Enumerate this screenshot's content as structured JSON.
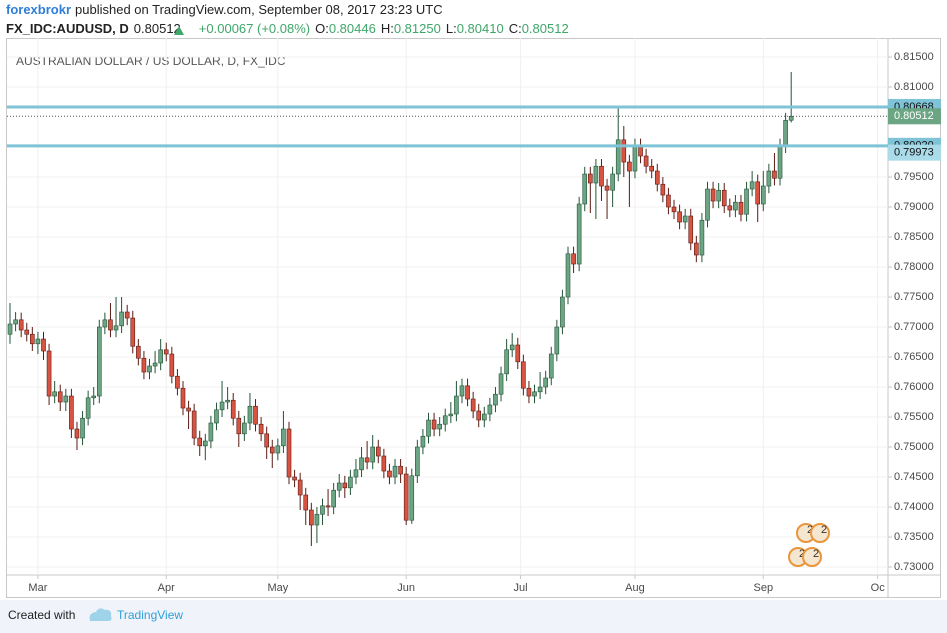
{
  "header": {
    "author": "forexbrokr",
    "published": "published on TradingView.com, September 08, 2017 23:23 UTC",
    "symbol": "FX_IDC:AUDUSD, D",
    "last": "0.80512",
    "change": "+0.00067 (+0.08%)",
    "o_label": "O:",
    "o": "0.80446",
    "h_label": "H:",
    "h": "0.81250",
    "l_label": "L:",
    "l": "0.80410",
    "c_label": "C:",
    "c": "0.80512"
  },
  "chart_data": {
    "type": "candlestick",
    "title": "AUSTRALIAN DOLLAR / US DOLLAR, D, FX_IDC",
    "open": [
      0.7688,
      0.7705,
      0.7712,
      0.7695,
      0.7688,
      0.7672,
      0.768,
      0.766,
      0.7585,
      0.7592,
      0.7575,
      0.7585,
      0.753,
      0.7515,
      0.7548,
      0.7582,
      0.7585,
      0.77,
      0.7712,
      0.7695,
      0.7702,
      0.7725,
      0.7715,
      0.7668,
      0.7648,
      0.7625,
      0.7635,
      0.764,
      0.7662,
      0.7655,
      0.7618,
      0.7598,
      0.7565,
      0.756,
      0.7515,
      0.7502,
      0.751,
      0.754,
      0.7562,
      0.7575,
      0.7578,
      0.7548,
      0.7522,
      0.754,
      0.7568,
      0.7538,
      0.7522,
      0.75,
      0.749,
      0.7502,
      0.753,
      0.745,
      0.7445,
      0.742,
      0.7395,
      0.737,
      0.7388,
      0.7402,
      0.74,
      0.7428,
      0.744,
      0.7432,
      0.745,
      0.7462,
      0.7482,
      0.7475,
      0.75,
      0.7485,
      0.746,
      0.745,
      0.7468,
      0.7455,
      0.7378,
      0.7452,
      0.75,
      0.7518,
      0.7545,
      0.753,
      0.7538,
      0.7552,
      0.7555,
      0.7585,
      0.7602,
      0.758,
      0.756,
      0.7545,
      0.7555,
      0.757,
      0.7588,
      0.7622,
      0.7662,
      0.767,
      0.7642,
      0.7598,
      0.7585,
      0.7592,
      0.76,
      0.7615,
      0.7655,
      0.77,
      0.775,
      0.7822,
      0.7805,
      0.7905,
      0.7955,
      0.794,
      0.7968,
      0.7935,
      0.7928,
      0.7955,
      0.8012,
      0.7975,
      0.796,
      0.8002,
      0.7985,
      0.7968,
      0.796,
      0.7938,
      0.792,
      0.79,
      0.7892,
      0.7875,
      0.7885,
      0.784,
      0.782,
      0.7878,
      0.793,
      0.791,
      0.7928,
      0.7902,
      0.7895,
      0.7908,
      0.7888,
      0.793,
      0.7942,
      0.7905,
      0.7935,
      0.796,
      0.7948,
      0.8002,
      0.80446
    ],
    "high": [
      0.774,
      0.7725,
      0.7724,
      0.7707,
      0.77,
      0.7692,
      0.7692,
      0.7672,
      0.761,
      0.7604,
      0.7597,
      0.7597,
      0.7542,
      0.756,
      0.7594,
      0.76,
      0.7712,
      0.7724,
      0.774,
      0.775,
      0.775,
      0.7737,
      0.7727,
      0.768,
      0.766,
      0.7647,
      0.766,
      0.768,
      0.7674,
      0.7667,
      0.763,
      0.761,
      0.7577,
      0.7572,
      0.7527,
      0.7522,
      0.7552,
      0.7574,
      0.761,
      0.76,
      0.759,
      0.756,
      0.7552,
      0.759,
      0.758,
      0.755,
      0.7534,
      0.7512,
      0.7514,
      0.756,
      0.7542,
      0.7462,
      0.7457,
      0.7432,
      0.7407,
      0.74,
      0.7414,
      0.743,
      0.744,
      0.7455,
      0.7452,
      0.7462,
      0.748,
      0.75,
      0.751,
      0.752,
      0.7512,
      0.7497,
      0.7472,
      0.748,
      0.748,
      0.7467,
      0.7464,
      0.7512,
      0.753,
      0.7557,
      0.7557,
      0.755,
      0.7564,
      0.7575,
      0.761,
      0.7614,
      0.7614,
      0.7592,
      0.7572,
      0.7567,
      0.7582,
      0.76,
      0.7634,
      0.768,
      0.769,
      0.7682,
      0.7654,
      0.761,
      0.7604,
      0.7625,
      0.7627,
      0.7667,
      0.7712,
      0.7762,
      0.7834,
      0.7834,
      0.7917,
      0.7967,
      0.7967,
      0.798,
      0.798,
      0.7947,
      0.7967,
      0.8066,
      0.8035,
      0.7987,
      0.8014,
      0.8014,
      0.7997,
      0.798,
      0.7972,
      0.795,
      0.7932,
      0.7912,
      0.7904,
      0.7897,
      0.7897,
      0.7852,
      0.789,
      0.7942,
      0.7942,
      0.794,
      0.794,
      0.7914,
      0.792,
      0.792,
      0.7942,
      0.796,
      0.7954,
      0.796,
      0.7972,
      0.799,
      0.8014,
      0.8057,
      0.8125
    ],
    "low": [
      0.7672,
      0.7693,
      0.7683,
      0.7676,
      0.766,
      0.7655,
      0.7645,
      0.757,
      0.7573,
      0.756,
      0.756,
      0.7515,
      0.7495,
      0.7503,
      0.7536,
      0.757,
      0.7573,
      0.7688,
      0.7683,
      0.7683,
      0.769,
      0.7703,
      0.7656,
      0.7636,
      0.7613,
      0.7613,
      0.7623,
      0.7628,
      0.7643,
      0.7606,
      0.7586,
      0.7553,
      0.753,
      0.7503,
      0.7485,
      0.7478,
      0.7498,
      0.7528,
      0.755,
      0.7563,
      0.7536,
      0.75,
      0.751,
      0.7528,
      0.7526,
      0.751,
      0.748,
      0.7465,
      0.7478,
      0.749,
      0.7438,
      0.7433,
      0.7395,
      0.737,
      0.7335,
      0.734,
      0.737,
      0.7385,
      0.7388,
      0.7416,
      0.7415,
      0.742,
      0.7438,
      0.745,
      0.7463,
      0.7463,
      0.7473,
      0.7448,
      0.7438,
      0.7438,
      0.744,
      0.737,
      0.7372,
      0.744,
      0.7488,
      0.7506,
      0.7518,
      0.7518,
      0.7526,
      0.754,
      0.7543,
      0.7573,
      0.7568,
      0.7548,
      0.7533,
      0.7533,
      0.7543,
      0.7558,
      0.7576,
      0.761,
      0.765,
      0.763,
      0.7586,
      0.7573,
      0.7573,
      0.758,
      0.7588,
      0.7603,
      0.7643,
      0.7688,
      0.7738,
      0.779,
      0.7793,
      0.7893,
      0.789,
      0.788,
      0.791,
      0.788,
      0.79,
      0.7943,
      0.795,
      0.79,
      0.7948,
      0.7973,
      0.7956,
      0.7948,
      0.7926,
      0.7908,
      0.7888,
      0.788,
      0.7863,
      0.7863,
      0.7828,
      0.7808,
      0.7808,
      0.7866,
      0.7898,
      0.7898,
      0.789,
      0.7883,
      0.7883,
      0.7876,
      0.7876,
      0.7918,
      0.7875,
      0.7893,
      0.7923,
      0.7936,
      0.7936,
      0.799,
      0.8041
    ],
    "close": [
      0.7705,
      0.7712,
      0.7695,
      0.7688,
      0.7672,
      0.768,
      0.766,
      0.7585,
      0.7592,
      0.7575,
      0.7585,
      0.753,
      0.7515,
      0.7548,
      0.7582,
      0.7585,
      0.77,
      0.7712,
      0.7695,
      0.7702,
      0.7725,
      0.7715,
      0.7668,
      0.7648,
      0.7625,
      0.7635,
      0.764,
      0.7662,
      0.7655,
      0.7618,
      0.7598,
      0.7565,
      0.756,
      0.7515,
      0.7502,
      0.751,
      0.754,
      0.7562,
      0.7575,
      0.7578,
      0.7548,
      0.7522,
      0.754,
      0.7568,
      0.7538,
      0.7522,
      0.75,
      0.749,
      0.7502,
      0.753,
      0.745,
      0.7445,
      0.742,
      0.7395,
      0.737,
      0.7388,
      0.7402,
      0.74,
      0.7428,
      0.744,
      0.7432,
      0.745,
      0.7462,
      0.7482,
      0.7475,
      0.75,
      0.7485,
      0.746,
      0.745,
      0.7468,
      0.7455,
      0.7378,
      0.7452,
      0.75,
      0.7518,
      0.7545,
      0.753,
      0.7538,
      0.7552,
      0.7555,
      0.7585,
      0.7602,
      0.758,
      0.756,
      0.7545,
      0.7555,
      0.757,
      0.7588,
      0.7622,
      0.7662,
      0.767,
      0.7642,
      0.7598,
      0.7585,
      0.7592,
      0.76,
      0.7615,
      0.7655,
      0.77,
      0.775,
      0.7822,
      0.7805,
      0.7905,
      0.7955,
      0.794,
      0.7968,
      0.7935,
      0.7928,
      0.7955,
      0.8012,
      0.7975,
      0.796,
      0.8002,
      0.7985,
      0.7968,
      0.796,
      0.7938,
      0.792,
      0.79,
      0.7892,
      0.7875,
      0.7885,
      0.784,
      0.782,
      0.7878,
      0.793,
      0.791,
      0.7928,
      0.7902,
      0.7895,
      0.7908,
      0.7888,
      0.793,
      0.7942,
      0.7905,
      0.7935,
      0.796,
      0.7948,
      0.8002,
      0.80446,
      0.80512
    ],
    "up_color": "#6ba583",
    "up_border": "#225437",
    "down_color": "#d75442",
    "down_border": "#5b1a13",
    "xlim": [
      -0.54,
      157.35
    ],
    "xticks": [
      {
        "value": 5,
        "label": "Mar"
      },
      {
        "value": 28,
        "label": "Apr"
      },
      {
        "value": 48,
        "label": "May"
      },
      {
        "value": 71,
        "label": "Jun"
      },
      {
        "value": 91.5,
        "label": "Jul"
      },
      {
        "value": 112,
        "label": "Aug"
      },
      {
        "value": 135,
        "label": "Sep"
      },
      {
        "value": 155.5,
        "label": "Oc"
      }
    ],
    "ylim": [
      0.72867,
      0.81817
    ],
    "yticks": [
      {
        "value": 0.73,
        "label": "0.73000"
      },
      {
        "value": 0.735,
        "label": "0.73500"
      },
      {
        "value": 0.74,
        "label": "0.74000"
      },
      {
        "value": 0.745,
        "label": "0.74500"
      },
      {
        "value": 0.75,
        "label": "0.75000"
      },
      {
        "value": 0.755,
        "label": "0.75500"
      },
      {
        "value": 0.76,
        "label": "0.76000"
      },
      {
        "value": 0.765,
        "label": "0.76500"
      },
      {
        "value": 0.77,
        "label": "0.77000"
      },
      {
        "value": 0.775,
        "label": "0.77500"
      },
      {
        "value": 0.78,
        "label": "0.78000"
      },
      {
        "value": 0.785,
        "label": "0.78500"
      },
      {
        "value": 0.79,
        "label": "0.79000"
      },
      {
        "value": 0.795,
        "label": "0.79500"
      },
      {
        "value": 0.81,
        "label": "0.81000"
      },
      {
        "value": 0.815,
        "label": "0.81500"
      }
    ],
    "grid": true,
    "levels": [
      {
        "value": 0.80668,
        "label": "0.80668",
        "color": "#7ec3d6"
      },
      {
        "value": 0.8002,
        "label": "0.80020",
        "color": "#7ec3d6"
      }
    ],
    "markers": [
      {
        "value": 0.79973,
        "label": "0.79973",
        "color": "#a9dbe8"
      }
    ],
    "last_price": {
      "value": 0.80512,
      "label": "0.80512",
      "color": "#6ba583"
    },
    "event_badges": [
      "2",
      "2",
      "2",
      "2"
    ]
  },
  "footer": {
    "text": "Created with",
    "brand": "TradingView"
  }
}
